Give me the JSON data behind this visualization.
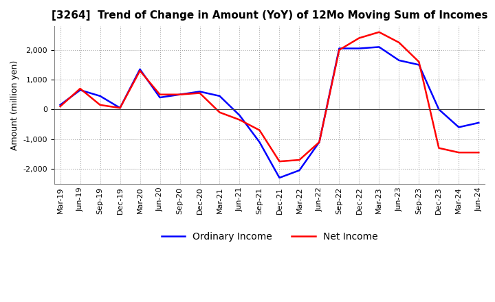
{
  "title": "[3264]  Trend of Change in Amount (YoY) of 12Mo Moving Sum of Incomes",
  "ylabel": "Amount (million yen)",
  "ylim": [
    -2500,
    2800
  ],
  "yticks": [
    -2000,
    -1000,
    0,
    1000,
    2000
  ],
  "x_labels": [
    "Mar-19",
    "Jun-19",
    "Sep-19",
    "Dec-19",
    "Mar-20",
    "Jun-20",
    "Sep-20",
    "Dec-20",
    "Mar-21",
    "Jun-21",
    "Sep-21",
    "Dec-21",
    "Mar-22",
    "Jun-22",
    "Sep-22",
    "Dec-22",
    "Mar-23",
    "Jun-23",
    "Sep-23",
    "Dec-23",
    "Mar-24",
    "Jun-24"
  ],
  "ordinary_income": [
    150,
    650,
    450,
    50,
    1350,
    400,
    500,
    600,
    450,
    -200,
    -1100,
    -2300,
    -2050,
    -1100,
    2050,
    2050,
    2100,
    1650,
    1500,
    0,
    -600,
    -450
  ],
  "net_income": [
    100,
    700,
    150,
    50,
    1300,
    500,
    500,
    550,
    -100,
    -350,
    -700,
    -1750,
    -1700,
    -1100,
    2000,
    2400,
    2600,
    2250,
    1600,
    -1300,
    -1450,
    -1450
  ],
  "ordinary_color": "#0000ff",
  "net_color": "#ff0000",
  "grid_color": "#aaaaaa",
  "background_color": "#ffffff",
  "title_fontsize": 11,
  "label_fontsize": 9,
  "tick_fontsize": 8,
  "legend_fontsize": 10
}
